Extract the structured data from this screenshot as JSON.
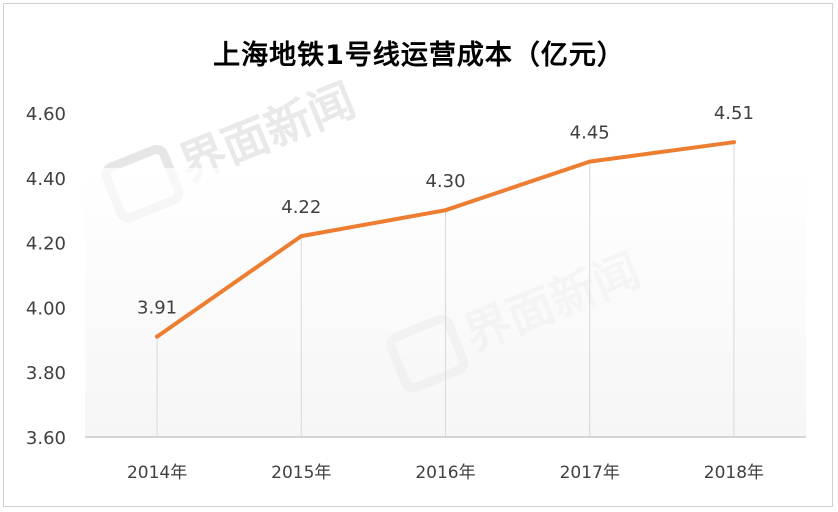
{
  "chart_data": {
    "type": "line",
    "title": "上海地铁1号线运营成本（亿元）",
    "categories": [
      "2014年",
      "2015年",
      "2016年",
      "2017年",
      "2018年"
    ],
    "series": [
      {
        "values": [
          3.91,
          4.22,
          4.3,
          4.45,
          4.51
        ],
        "color": "#ED7D31"
      }
    ],
    "data_labels": [
      "3.91",
      "4.22",
      "4.30",
      "4.45",
      "4.51"
    ],
    "ylim": [
      3.6,
      4.6
    ],
    "yticks": [
      "3.60",
      "3.80",
      "4.00",
      "4.20",
      "4.40",
      "4.60"
    ],
    "grid": false,
    "legend": "none"
  },
  "watermark": {
    "text": "界面新闻",
    "icon": "jiemian-logo-icon"
  }
}
